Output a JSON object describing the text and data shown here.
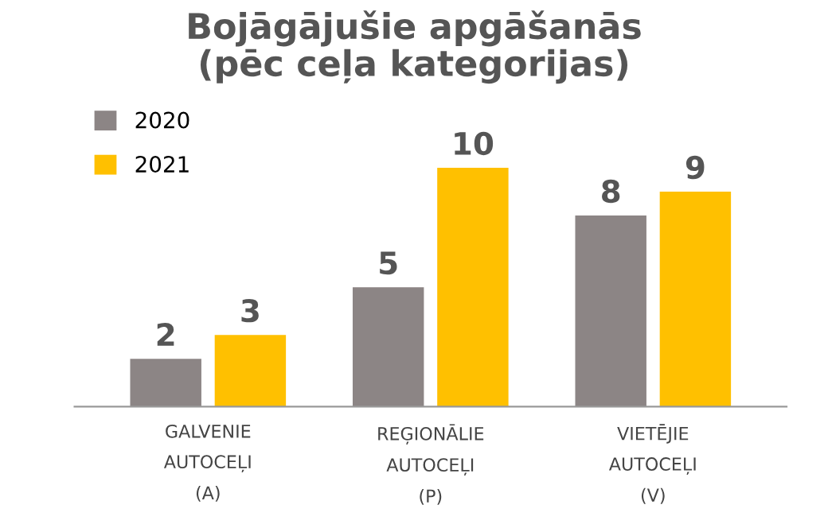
{
  "chart_data": {
    "type": "bar",
    "title": "Bojāgājušie apgāšanās\n(pēc ceļa kategorijas)",
    "categories": [
      "GALVENIE\nAUTOCEĻI\n(A)",
      "REĢIONĀLIE\nAUTOCEĻI\n(P)",
      "VIETĒJIE\nAUTOCEĻI\n(V)"
    ],
    "series": [
      {
        "name": "2020",
        "color": "#8c8585",
        "values": [
          2,
          5,
          8
        ]
      },
      {
        "name": "2021",
        "color": "#ffc000",
        "values": [
          3,
          10,
          9
        ]
      }
    ],
    "data_labels": true,
    "legend": "top left",
    "grid": false
  }
}
